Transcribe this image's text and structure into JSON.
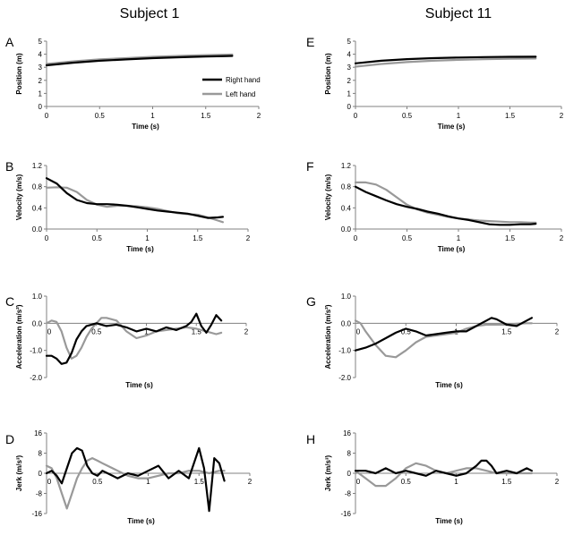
{
  "column_titles": [
    "Subject 1",
    "Subject 11"
  ],
  "legend": [
    {
      "label": "Right hand",
      "color": "#000000"
    },
    {
      "label": "Left hand",
      "color": "#999999"
    }
  ],
  "colors": {
    "right": "#000000",
    "left": "#999999",
    "axis": "#808080"
  },
  "chart_data": [
    {
      "panel": "A",
      "type": "line",
      "xlabel": "Time (s)",
      "ylabel": "Position (m)",
      "xlim": [
        0,
        2
      ],
      "ylim": [
        0,
        5
      ],
      "xticks": [
        "0",
        "0.5",
        "1",
        "1.5",
        "2"
      ],
      "yticks": [
        "0",
        "1",
        "2",
        "3",
        "4",
        "5"
      ],
      "series": [
        {
          "name": "Right hand",
          "x": [
            0,
            0.25,
            0.5,
            0.75,
            1,
            1.25,
            1.5,
            1.75
          ],
          "y": [
            3.15,
            3.35,
            3.5,
            3.6,
            3.7,
            3.77,
            3.83,
            3.87
          ]
        },
        {
          "name": "Left hand",
          "x": [
            0,
            0.25,
            0.5,
            0.75,
            1,
            1.25,
            1.5,
            1.75
          ],
          "y": [
            3.25,
            3.45,
            3.6,
            3.7,
            3.8,
            3.87,
            3.93,
            3.97
          ]
        }
      ]
    },
    {
      "panel": "E",
      "type": "line",
      "xlabel": "Time (s)",
      "ylabel": "Position (m)",
      "xlim": [
        0,
        2
      ],
      "ylim": [
        0,
        5
      ],
      "xticks": [
        "0",
        "0.5",
        "1",
        "1.5",
        "2"
      ],
      "yticks": [
        "0",
        "1",
        "2",
        "3",
        "4",
        "5"
      ],
      "series": [
        {
          "name": "Right hand",
          "x": [
            0,
            0.25,
            0.5,
            0.75,
            1,
            1.25,
            1.5,
            1.75
          ],
          "y": [
            3.3,
            3.5,
            3.62,
            3.7,
            3.75,
            3.78,
            3.8,
            3.81
          ]
        },
        {
          "name": "Left hand",
          "x": [
            0,
            0.25,
            0.5,
            0.75,
            1,
            1.25,
            1.5,
            1.75
          ],
          "y": [
            3.05,
            3.25,
            3.4,
            3.5,
            3.57,
            3.62,
            3.65,
            3.67
          ]
        }
      ]
    },
    {
      "panel": "B",
      "type": "line",
      "xlabel": "Time (s)",
      "ylabel": "Velocity (m/s)",
      "xlim": [
        0,
        2
      ],
      "ylim": [
        0,
        1.2
      ],
      "xticks": [
        "0",
        "0.5",
        "1",
        "1.5",
        "2"
      ],
      "yticks": [
        "0.0",
        "0.4",
        "0.8",
        "1.2"
      ],
      "series": [
        {
          "name": "Right hand",
          "x": [
            0,
            0.1,
            0.2,
            0.3,
            0.4,
            0.5,
            0.6,
            0.7,
            0.8,
            0.9,
            1.0,
            1.1,
            1.2,
            1.3,
            1.4,
            1.5,
            1.6,
            1.7,
            1.75
          ],
          "y": [
            0.96,
            0.86,
            0.68,
            0.55,
            0.49,
            0.47,
            0.47,
            0.46,
            0.44,
            0.41,
            0.38,
            0.35,
            0.33,
            0.31,
            0.29,
            0.25,
            0.21,
            0.22,
            0.23
          ]
        },
        {
          "name": "Left hand",
          "x": [
            0,
            0.1,
            0.2,
            0.3,
            0.4,
            0.5,
            0.6,
            0.7,
            0.8,
            0.9,
            1.0,
            1.1,
            1.2,
            1.3,
            1.4,
            1.5,
            1.6,
            1.7,
            1.75
          ],
          "y": [
            0.78,
            0.79,
            0.78,
            0.7,
            0.55,
            0.46,
            0.42,
            0.44,
            0.44,
            0.43,
            0.41,
            0.38,
            0.34,
            0.3,
            0.28,
            0.27,
            0.22,
            0.16,
            0.13
          ]
        }
      ]
    },
    {
      "panel": "F",
      "type": "line",
      "xlabel": "Time (s)",
      "ylabel": "Velocity (m/s)",
      "xlim": [
        0,
        2
      ],
      "ylim": [
        0,
        1.2
      ],
      "xticks": [
        "0",
        "0.5",
        "1",
        "1.5",
        "2"
      ],
      "yticks": [
        "0.0",
        "0.4",
        "0.8",
        "1.2"
      ],
      "series": [
        {
          "name": "Right hand",
          "x": [
            0,
            0.1,
            0.2,
            0.3,
            0.4,
            0.5,
            0.6,
            0.7,
            0.8,
            0.9,
            1.0,
            1.1,
            1.2,
            1.3,
            1.4,
            1.5,
            1.6,
            1.7,
            1.75
          ],
          "y": [
            0.8,
            0.7,
            0.62,
            0.54,
            0.47,
            0.42,
            0.38,
            0.33,
            0.29,
            0.24,
            0.2,
            0.17,
            0.13,
            0.09,
            0.08,
            0.08,
            0.09,
            0.09,
            0.1
          ]
        },
        {
          "name": "Left hand",
          "x": [
            0,
            0.1,
            0.2,
            0.3,
            0.4,
            0.5,
            0.6,
            0.7,
            0.8,
            0.9,
            1.0,
            1.1,
            1.2,
            1.3,
            1.4,
            1.5,
            1.6,
            1.7,
            1.75
          ],
          "y": [
            0.88,
            0.88,
            0.84,
            0.74,
            0.6,
            0.46,
            0.37,
            0.31,
            0.27,
            0.23,
            0.2,
            0.18,
            0.16,
            0.15,
            0.14,
            0.13,
            0.13,
            0.12,
            0.12
          ]
        }
      ]
    },
    {
      "panel": "C",
      "type": "line",
      "xlabel": "Time (s)",
      "ylabel": "Acceleration (m/s²)",
      "xlim": [
        0,
        2
      ],
      "ylim": [
        -2.0,
        1.0
      ],
      "xticks": [
        "0",
        "0.5",
        "1",
        "1.5",
        "2"
      ],
      "yticks": [
        "-2.0",
        "-1.0",
        "0.0",
        "1.0"
      ],
      "series": [
        {
          "name": "Right hand",
          "x": [
            0,
            0.05,
            0.1,
            0.15,
            0.2,
            0.25,
            0.3,
            0.35,
            0.4,
            0.45,
            0.5,
            0.55,
            0.6,
            0.7,
            0.8,
            0.9,
            1.0,
            1.1,
            1.2,
            1.3,
            1.4,
            1.45,
            1.5,
            1.55,
            1.6,
            1.65,
            1.7,
            1.75
          ],
          "y": [
            -1.2,
            -1.2,
            -1.3,
            -1.5,
            -1.45,
            -1.1,
            -0.6,
            -0.3,
            -0.1,
            -0.05,
            0.0,
            -0.05,
            -0.1,
            -0.05,
            -0.15,
            -0.3,
            -0.2,
            -0.3,
            -0.15,
            -0.25,
            -0.1,
            0.05,
            0.35,
            -0.1,
            -0.35,
            -0.05,
            0.3,
            0.1
          ]
        },
        {
          "name": "Left hand",
          "x": [
            0,
            0.05,
            0.1,
            0.15,
            0.2,
            0.25,
            0.3,
            0.35,
            0.4,
            0.45,
            0.5,
            0.55,
            0.6,
            0.7,
            0.8,
            0.9,
            1.0,
            1.1,
            1.2,
            1.3,
            1.4,
            1.5,
            1.6,
            1.7,
            1.75
          ],
          "y": [
            0.0,
            0.1,
            0.05,
            -0.3,
            -0.9,
            -1.3,
            -1.2,
            -0.9,
            -0.5,
            -0.2,
            0.0,
            0.2,
            0.2,
            0.1,
            -0.3,
            -0.55,
            -0.45,
            -0.3,
            -0.25,
            -0.2,
            -0.15,
            -0.2,
            -0.3,
            -0.4,
            -0.35
          ]
        }
      ]
    },
    {
      "panel": "G",
      "type": "line",
      "xlabel": "Time (s)",
      "ylabel": "Acceleration (m/s²)",
      "xlim": [
        0,
        2
      ],
      "ylim": [
        -2.0,
        1.0
      ],
      "xticks": [
        "0",
        "0.5",
        "1",
        "1.5",
        "2"
      ],
      "yticks": [
        "-2.0",
        "-1.0",
        "0.0",
        "1.0"
      ],
      "series": [
        {
          "name": "Right hand",
          "x": [
            0,
            0.1,
            0.2,
            0.3,
            0.4,
            0.5,
            0.6,
            0.7,
            0.8,
            0.9,
            1.0,
            1.1,
            1.2,
            1.3,
            1.35,
            1.4,
            1.5,
            1.6,
            1.7,
            1.75
          ],
          "y": [
            -1.0,
            -0.9,
            -0.75,
            -0.55,
            -0.35,
            -0.2,
            -0.3,
            -0.45,
            -0.4,
            -0.35,
            -0.3,
            -0.3,
            -0.1,
            0.1,
            0.2,
            0.15,
            -0.05,
            -0.1,
            0.1,
            0.2
          ]
        },
        {
          "name": "Left hand",
          "x": [
            0,
            0.05,
            0.1,
            0.2,
            0.3,
            0.4,
            0.5,
            0.6,
            0.7,
            0.8,
            0.9,
            1.0,
            1.1,
            1.2,
            1.3,
            1.4,
            1.5,
            1.6,
            1.7,
            1.75
          ],
          "y": [
            0.1,
            0.0,
            -0.3,
            -0.8,
            -1.2,
            -1.25,
            -1.0,
            -0.7,
            -0.5,
            -0.45,
            -0.4,
            -0.35,
            -0.2,
            -0.1,
            -0.05,
            -0.05,
            -0.05,
            -0.02,
            0.0,
            0.0
          ]
        }
      ]
    },
    {
      "panel": "D",
      "type": "line",
      "xlabel": "Time (s)",
      "ylabel": "Jerk (m/s³)",
      "xlim": [
        0,
        2
      ],
      "ylim": [
        -16,
        16
      ],
      "xticks": [
        "0",
        "0.5",
        "1",
        "1.5",
        "2"
      ],
      "yticks": [
        "-16",
        "-8",
        "0",
        "8",
        "16"
      ],
      "series": [
        {
          "name": "Right hand",
          "x": [
            0,
            0.05,
            0.1,
            0.15,
            0.2,
            0.25,
            0.3,
            0.35,
            0.4,
            0.45,
            0.5,
            0.55,
            0.6,
            0.7,
            0.8,
            0.9,
            1.0,
            1.1,
            1.2,
            1.3,
            1.4,
            1.5,
            1.55,
            1.6,
            1.65,
            1.7,
            1.75
          ],
          "y": [
            0,
            1,
            -1,
            -4,
            2,
            8,
            10,
            9,
            3,
            0,
            -1,
            1,
            0,
            -2,
            0,
            -1,
            1,
            3,
            -2,
            1,
            -2,
            10,
            2,
            -15,
            6,
            4,
            -3
          ]
        },
        {
          "name": "Left hand",
          "x": [
            0,
            0.05,
            0.1,
            0.15,
            0.2,
            0.25,
            0.3,
            0.35,
            0.4,
            0.45,
            0.5,
            0.55,
            0.6,
            0.7,
            0.8,
            0.9,
            1.0,
            1.1,
            1.2,
            1.3,
            1.4,
            1.5,
            1.6,
            1.7,
            1.75
          ],
          "y": [
            3,
            2,
            -2,
            -8,
            -14,
            -8,
            -2,
            2,
            5,
            6,
            5,
            4,
            3,
            1,
            -1,
            -2,
            -2,
            -1,
            0,
            0,
            1,
            1,
            0,
            1,
            1
          ]
        }
      ]
    },
    {
      "panel": "H",
      "type": "line",
      "xlabel": "Time (s)",
      "ylabel": "Jerk (m/s³)",
      "xlim": [
        0,
        2
      ],
      "ylim": [
        -16,
        16
      ],
      "xticks": [
        "0",
        "0.5",
        "1",
        "1.5",
        "2"
      ],
      "yticks": [
        "-16",
        "-8",
        "0",
        "8",
        "16"
      ],
      "series": [
        {
          "name": "Right hand",
          "x": [
            0,
            0.1,
            0.2,
            0.3,
            0.4,
            0.5,
            0.6,
            0.7,
            0.8,
            0.9,
            1.0,
            1.1,
            1.2,
            1.25,
            1.3,
            1.35,
            1.4,
            1.5,
            1.6,
            1.7,
            1.75
          ],
          "y": [
            1,
            1,
            0,
            2,
            0,
            1,
            0,
            -1,
            1,
            0,
            -1,
            0,
            3,
            5,
            5,
            3,
            0,
            1,
            0,
            2,
            1
          ]
        },
        {
          "name": "Left hand",
          "x": [
            0,
            0.1,
            0.2,
            0.3,
            0.4,
            0.5,
            0.6,
            0.7,
            0.8,
            0.9,
            1.0,
            1.1,
            1.2,
            1.3,
            1.4,
            1.5,
            1.6,
            1.7,
            1.75
          ],
          "y": [
            1,
            -2,
            -5,
            -5,
            -2,
            2,
            4,
            3,
            1,
            0,
            1,
            2,
            2,
            1,
            0,
            0,
            0,
            0,
            0
          ]
        }
      ]
    }
  ]
}
